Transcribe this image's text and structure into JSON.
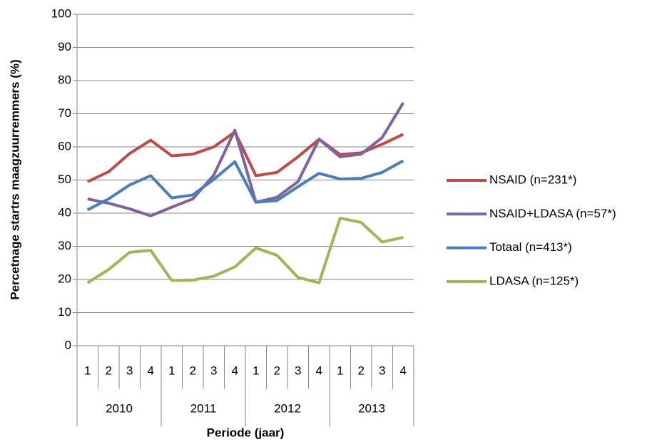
{
  "chart_data": {
    "type": "line",
    "y_label": "Percetnage startrs maagzuurremmers (%)",
    "x_label": "Periode (jaar)",
    "categories": [
      "1",
      "2",
      "3",
      "4",
      "1",
      "2",
      "3",
      "4",
      "1",
      "2",
      "3",
      "4",
      "1",
      "2",
      "3",
      "4"
    ],
    "x_groups": [
      "2010",
      "2011",
      "2012",
      "2013"
    ],
    "series": [
      {
        "name": "NSAID (n=231*)",
        "color": "#be4b48",
        "values": [
          49.5,
          52.5,
          58,
          62,
          57.3,
          57.8,
          60,
          64.5,
          51.3,
          52.3,
          57,
          62.3,
          57.7,
          58.2,
          60.8,
          63.8
        ]
      },
      {
        "name": "NSAID+LDASA (n=57*)",
        "color": "#7e62a1",
        "values": [
          44.3,
          43,
          41.3,
          39.2,
          41.8,
          44.3,
          51.5,
          65,
          43.3,
          44.8,
          49.5,
          62.3,
          57,
          57.8,
          62.8,
          73.3
        ]
      },
      {
        "name": "Totaal (n=413*)",
        "color": "#4a7ebb",
        "values": [
          41,
          44.3,
          48.5,
          51.3,
          44.6,
          45.5,
          50.2,
          55.5,
          43.3,
          43.8,
          48,
          52,
          50.3,
          50.5,
          52.3,
          55.8
        ]
      },
      {
        "name": "LDASA (n=125*)",
        "color": "#98b954",
        "values": [
          19,
          23,
          28.2,
          28.8,
          19.7,
          19.8,
          21,
          23.8,
          29.5,
          27.3,
          20.6,
          19,
          38.5,
          37.2,
          31.3,
          32.7
        ]
      }
    ],
    "ylim": [
      0,
      100
    ],
    "yticks": [
      0,
      10,
      20,
      30,
      40,
      50,
      60,
      70,
      80,
      90,
      100
    ],
    "grid": true,
    "legend": "right"
  }
}
